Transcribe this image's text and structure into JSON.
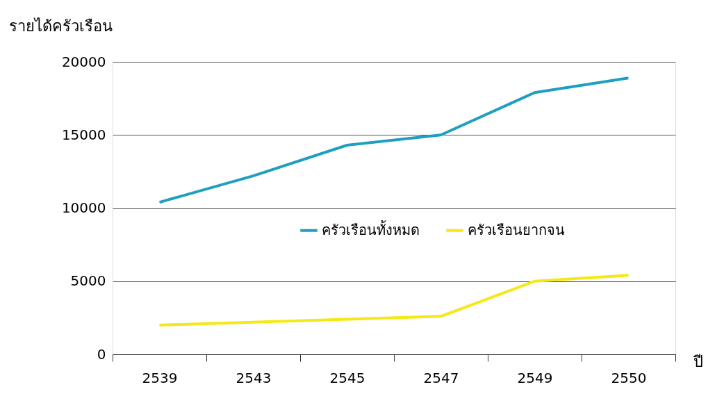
{
  "chart_data": {
    "type": "line",
    "ylabel": "รายได้ครัวเรือน",
    "xlabel": "ปี",
    "categories": [
      "2539",
      "2543",
      "2545",
      "2547",
      "2549",
      "2550"
    ],
    "series": [
      {
        "name": "ครัวเรือนทั้งหมด",
        "color": "#1f9fc0",
        "values": [
          10400,
          12200,
          14300,
          15000,
          17900,
          18900
        ]
      },
      {
        "name": "ครัวเรือนยากจน",
        "color": "#f5e815",
        "values": [
          2000,
          2200,
          2400,
          2600,
          5000,
          5400
        ]
      }
    ],
    "ylim": [
      0,
      20000
    ],
    "yticks": [
      0,
      5000,
      10000,
      15000,
      20000
    ],
    "grid": "y",
    "legend": "right",
    "line_style": "solid"
  }
}
